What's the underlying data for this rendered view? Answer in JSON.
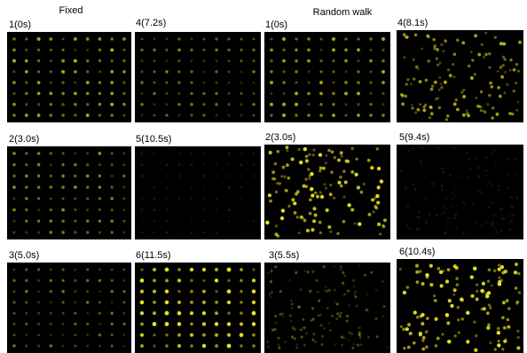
{
  "headings": {
    "fixed": "Fixed",
    "random_walk": "Random walk"
  },
  "panels": [
    {
      "label": "1(0s)"
    },
    {
      "label": "4(7.2s)"
    },
    {
      "label": "1(0s)"
    },
    {
      "label": "4(8.1s)"
    },
    {
      "label": "2(3.0s)"
    },
    {
      "label": "5(10.5s)"
    },
    {
      "label": "2(3.0s)"
    },
    {
      "label": "5(9.4s)"
    },
    {
      "label": "3(5.0s)"
    },
    {
      "label": "6(11.5s)"
    },
    {
      "label": "3(5.5s)"
    },
    {
      "label": "6(10.4s)"
    }
  ]
}
